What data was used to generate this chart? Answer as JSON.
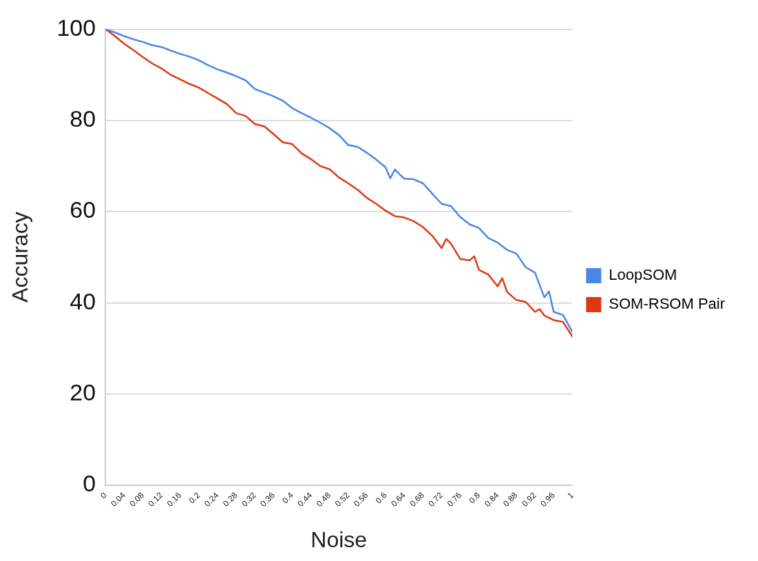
{
  "chart_data": {
    "type": "line",
    "xlabel": "Noise",
    "ylabel": "Accuracy",
    "xlim": [
      0,
      1
    ],
    "xticks": [
      0,
      0.04,
      0.08,
      0.12,
      0.16,
      0.2,
      0.24,
      0.28,
      0.32,
      0.36,
      0.4,
      0.44,
      0.48,
      0.52,
      0.56,
      0.6,
      0.64,
      0.68,
      0.72,
      0.76,
      0.8,
      0.84,
      0.88,
      0.92,
      0.96,
      1
    ],
    "ylim": [
      0,
      100
    ],
    "yticks": [
      0,
      20,
      40,
      60,
      80,
      100
    ],
    "grid": "y",
    "legend": "right",
    "marker": "none",
    "line_style": "solid",
    "series": [
      {
        "name": "LoopSOM",
        "color": "#4a86e8",
        "x": [
          0,
          0.02,
          0.04,
          0.06,
          0.08,
          0.1,
          0.12,
          0.14,
          0.16,
          0.18,
          0.2,
          0.22,
          0.24,
          0.26,
          0.28,
          0.3,
          0.32,
          0.34,
          0.36,
          0.38,
          0.4,
          0.42,
          0.44,
          0.46,
          0.48,
          0.5,
          0.52,
          0.54,
          0.56,
          0.58,
          0.6,
          0.61,
          0.62,
          0.64,
          0.66,
          0.68,
          0.7,
          0.72,
          0.74,
          0.76,
          0.78,
          0.8,
          0.82,
          0.84,
          0.86,
          0.88,
          0.9,
          0.92,
          0.94,
          0.95,
          0.96,
          0.98,
          1
        ],
        "values": [
          100,
          99.3,
          98.5,
          97.8,
          97.2,
          96.5,
          96.1,
          95.3,
          94.6,
          94,
          93.2,
          92.1,
          91.2,
          90.5,
          89.7,
          88.8,
          86.9,
          86.1,
          85.3,
          84.3,
          82.7,
          81.6,
          80.6,
          79.5,
          78.3,
          76.8,
          74.6,
          74.2,
          72.9,
          71.4,
          69.7,
          67.3,
          69.2,
          67.2,
          67.1,
          66.2,
          63.9,
          61.7,
          61.2,
          58.8,
          57.2,
          56.4,
          54.2,
          53.2,
          51.6,
          50.8,
          47.8,
          46.6,
          41.2,
          42.5,
          38,
          37.3,
          33.6
        ]
      },
      {
        "name": "SOM-RSOM Pair",
        "color": "#dc3912",
        "x": [
          0,
          0.02,
          0.04,
          0.06,
          0.08,
          0.1,
          0.12,
          0.14,
          0.16,
          0.18,
          0.2,
          0.22,
          0.24,
          0.26,
          0.28,
          0.3,
          0.32,
          0.34,
          0.36,
          0.38,
          0.4,
          0.42,
          0.44,
          0.46,
          0.48,
          0.5,
          0.52,
          0.54,
          0.56,
          0.58,
          0.6,
          0.62,
          0.64,
          0.66,
          0.68,
          0.7,
          0.72,
          0.73,
          0.74,
          0.76,
          0.78,
          0.79,
          0.8,
          0.82,
          0.84,
          0.85,
          0.86,
          0.88,
          0.9,
          0.92,
          0.93,
          0.94,
          0.96,
          0.98,
          1
        ],
        "values": [
          100,
          98.5,
          96.8,
          95.4,
          93.9,
          92.5,
          91.4,
          90,
          89,
          88,
          87.2,
          86,
          84.8,
          83.6,
          81.6,
          81,
          79.2,
          78.7,
          77,
          75.2,
          74.8,
          72.8,
          71.5,
          70,
          69.3,
          67.5,
          66.2,
          64.8,
          63,
          61.7,
          60.2,
          59,
          58.7,
          57.9,
          56.6,
          54.7,
          52,
          54,
          53,
          49.6,
          49.3,
          50.2,
          47.2,
          46.2,
          43.6,
          45.4,
          42.4,
          40.6,
          40.2,
          38,
          38.6,
          37.2,
          36.2,
          35.8,
          32.6
        ]
      }
    ]
  }
}
